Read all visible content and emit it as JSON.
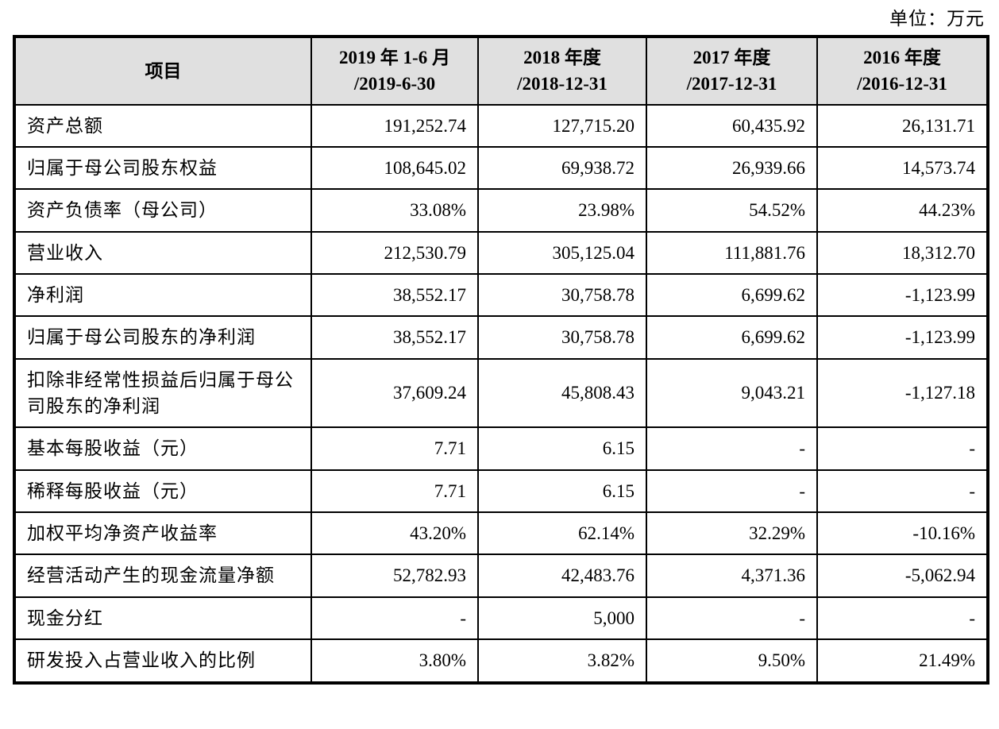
{
  "unit_label": "单位：万元",
  "table": {
    "header": {
      "item": "项目",
      "periods": [
        {
          "line1": "2019 年 1-6 月",
          "line2": "/2019-6-30"
        },
        {
          "line1": "2018 年度",
          "line2": "/2018-12-31"
        },
        {
          "line1": "2017 年度",
          "line2": "/2017-12-31"
        },
        {
          "line1": "2016 年度",
          "line2": "/2016-12-31"
        }
      ]
    },
    "rows": [
      {
        "label": "资产总额",
        "values": [
          "191,252.74",
          "127,715.20",
          "60,435.92",
          "26,131.71"
        ]
      },
      {
        "label": "归属于母公司股东权益",
        "values": [
          "108,645.02",
          "69,938.72",
          "26,939.66",
          "14,573.74"
        ]
      },
      {
        "label": "资产负债率（母公司）",
        "values": [
          "33.08%",
          "23.98%",
          "54.52%",
          "44.23%"
        ]
      },
      {
        "label": "营业收入",
        "values": [
          "212,530.79",
          "305,125.04",
          "111,881.76",
          "18,312.70"
        ]
      },
      {
        "label": "净利润",
        "values": [
          "38,552.17",
          "30,758.78",
          "6,699.62",
          "-1,123.99"
        ]
      },
      {
        "label": "归属于母公司股东的净利润",
        "values": [
          "38,552.17",
          "30,758.78",
          "6,699.62",
          "-1,123.99"
        ]
      },
      {
        "label": "扣除非经常性损益后归属于母公司股东的净利润",
        "values": [
          "37,609.24",
          "45,808.43",
          "9,043.21",
          "-1,127.18"
        ]
      },
      {
        "label": "基本每股收益（元）",
        "values": [
          "7.71",
          "6.15",
          "-",
          "-"
        ]
      },
      {
        "label": "稀释每股收益（元）",
        "values": [
          "7.71",
          "6.15",
          "-",
          "-"
        ]
      },
      {
        "label": "加权平均净资产收益率",
        "values": [
          "43.20%",
          "62.14%",
          "32.29%",
          "-10.16%"
        ]
      },
      {
        "label": "经营活动产生的现金流量净额",
        "values": [
          "52,782.93",
          "42,483.76",
          "4,371.36",
          "-5,062.94"
        ]
      },
      {
        "label": "现金分红",
        "values": [
          "-",
          "5,000",
          "-",
          "-"
        ]
      },
      {
        "label": "研发投入占营业收入的比例",
        "values": [
          "3.80%",
          "3.82%",
          "9.50%",
          "21.49%"
        ]
      }
    ]
  }
}
